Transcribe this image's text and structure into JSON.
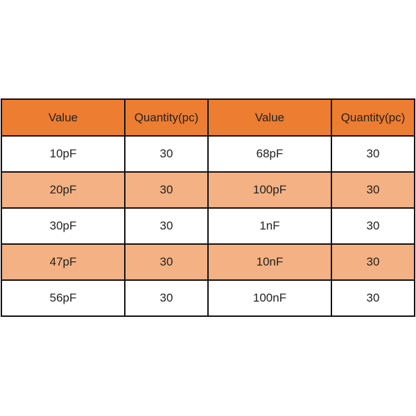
{
  "colors": {
    "header": "#ED7D31",
    "band": "#F4B183",
    "plain": "#FFFFFF",
    "border": "#111111"
  },
  "table": {
    "headers": [
      "Value",
      "Quantity(pc)",
      "Value",
      "Quantity(pc)"
    ],
    "rows": [
      [
        "10pF",
        "30",
        "68pF",
        "30"
      ],
      [
        "20pF",
        "30",
        "100pF",
        "30"
      ],
      [
        "30pF",
        "30",
        "1nF",
        "30"
      ],
      [
        "47pF",
        "30",
        "10nF",
        "30"
      ],
      [
        "56pF",
        "30",
        "100nF",
        "30"
      ]
    ]
  }
}
